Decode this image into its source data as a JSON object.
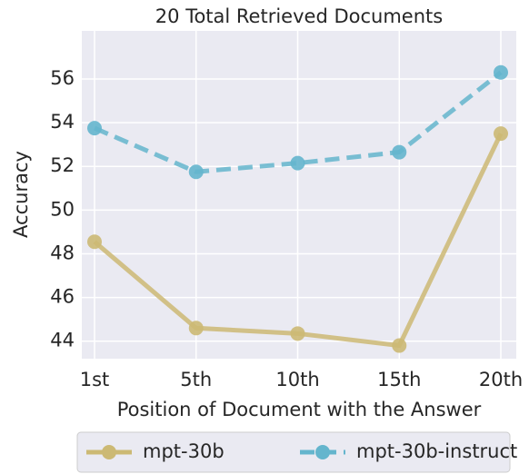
{
  "chart_data": {
    "type": "line",
    "title": "20 Total Retrieved Documents",
    "x_label": "Position of Document with the Answer",
    "y_label": "Accuracy",
    "categories": [
      "1st",
      "5th",
      "10th",
      "15th",
      "20th"
    ],
    "series": [
      {
        "name": "mpt-30b",
        "color": "#ccb974",
        "linestyle": "solid",
        "values": [
          48.55,
          44.6,
          44.35,
          43.8,
          53.5
        ]
      },
      {
        "name": "mpt-30b-instruct",
        "color": "#64b5cd",
        "linestyle": "dashed",
        "values": [
          53.75,
          51.75,
          52.15,
          52.65,
          56.3
        ]
      }
    ],
    "ylim": [
      43.2,
      58.2
    ],
    "yticks": [
      44,
      46,
      48,
      50,
      52,
      54,
      56
    ],
    "grid": true,
    "legend": "bottom"
  }
}
